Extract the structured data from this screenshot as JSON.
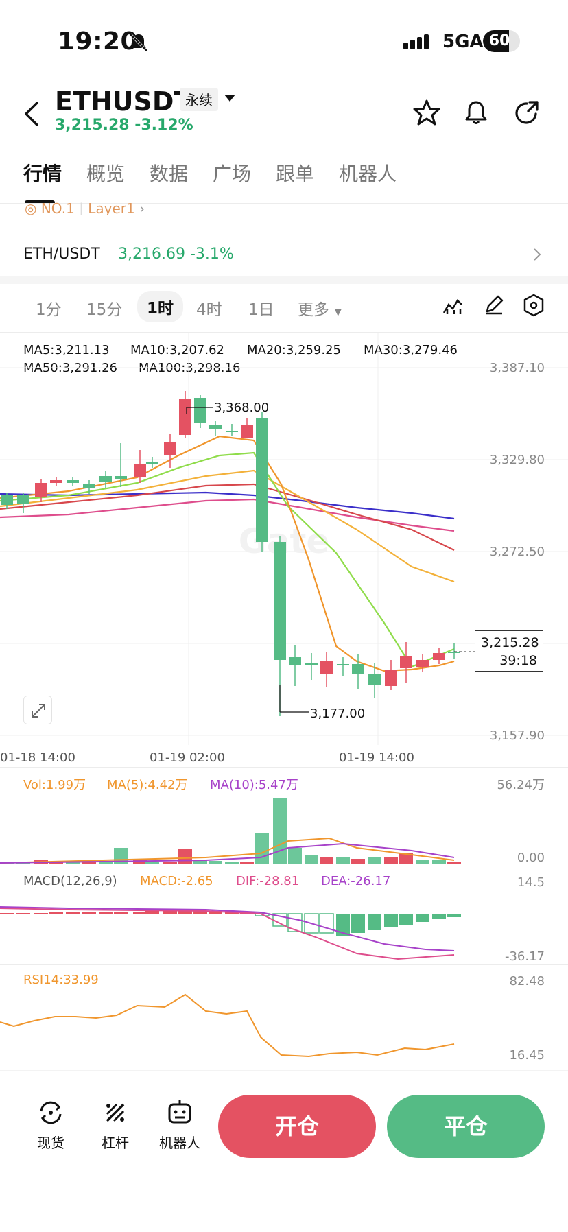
{
  "status_bar": {
    "time": "19:20",
    "network": "5GA",
    "battery": "60"
  },
  "header": {
    "pair": "ETHUSDT",
    "badge": "永续",
    "price_change": "3,215.28 -3.12%"
  },
  "tabs": [
    "行情",
    "概览",
    "数据",
    "广场",
    "跟单",
    "机器人"
  ],
  "tag_row": {
    "rank": "NO.1",
    "category": "Layer1"
  },
  "ticker": {
    "symbol": "ETH/USDT",
    "value": "3,216.69 -3.1%"
  },
  "intervals": [
    "1分",
    "15分",
    "1时",
    "4时",
    "1日",
    "更多"
  ],
  "ma_legend": {
    "ma5": "MA5:3,211.13",
    "ma10": "MA10:3,207.62",
    "ma20": "MA20:3,259.25",
    "ma30": "MA30:3,279.46",
    "ma50": "MA50:3,291.26",
    "ma100": "MA100:3,298.16"
  },
  "price_axis": [
    "3,387.10",
    "3,329.80",
    "3,272.50",
    "3,157.90"
  ],
  "annotations": {
    "high": "3,368.00",
    "low": "3,177.00",
    "last_price": "3,215.28",
    "countdown": "39:18"
  },
  "time_axis": [
    "01-18 14:00",
    "01-19 02:00",
    "01-19 14:00"
  ],
  "volume": {
    "vol": "Vol:1.99万",
    "ma5": "MA(5):4.42万",
    "ma10": "MA(10):5.47万",
    "top": "56.24万",
    "bottom": "0.00"
  },
  "macd": {
    "params": "MACD(12,26,9)",
    "macd": "MACD:-2.65",
    "dif": "DIF:-28.81",
    "dea": "DEA:-26.17",
    "top": "14.5",
    "bottom": "-36.17"
  },
  "rsi": {
    "label": "RSI14:33.99",
    "top": "82.48",
    "bottom": "16.45"
  },
  "bottom_nav": [
    "现货",
    "杠杆",
    "机器人"
  ],
  "actions": {
    "open": "开仓",
    "close": "平仓"
  },
  "colors": {
    "up": "#e45262",
    "down": "#55bb85",
    "ma5": "#f0962d",
    "ma10": "#8fdc4a",
    "ma20": "#f3b13a",
    "ma30": "#d7474c",
    "ma50": "#de4d8c",
    "ma100": "#3b2fc9"
  }
}
